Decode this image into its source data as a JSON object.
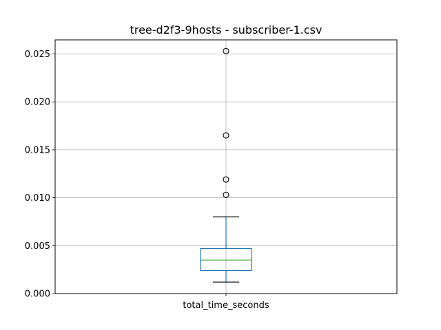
{
  "chart_data": {
    "type": "box",
    "title": "tree-d2f3-9hosts - subscriber-1.csv",
    "categories": [
      "total_time_seconds"
    ],
    "xlabel": "",
    "ylabel": "",
    "ylim": [
      0.0,
      0.02647
    ],
    "yticks": [
      "0.000",
      "0.005",
      "0.010",
      "0.015",
      "0.020",
      "0.025"
    ],
    "grid": true,
    "series": [
      {
        "whisker_low": 0.0012,
        "q1": 0.0024,
        "median": 0.0035,
        "q3": 0.0047,
        "whisker_high": 0.008,
        "outliers": [
          0.0103,
          0.0119,
          0.0165,
          0.0253
        ]
      }
    ],
    "colors": {
      "box": "#1f77b4",
      "median": "#2ca02c",
      "whisker_cap": "#000000",
      "grid": "#b0b0b0",
      "axes": "#000000",
      "outlier_edge": "#000000"
    }
  }
}
